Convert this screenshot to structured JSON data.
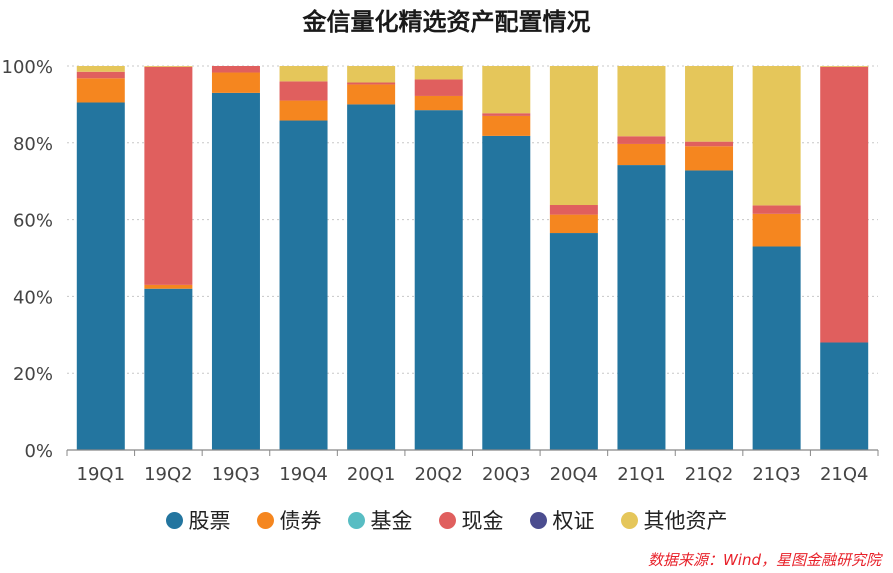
{
  "chart_data": {
    "type": "bar",
    "stacked": true,
    "title": "金信量化精选资产配置情况",
    "categories": [
      "19Q1",
      "19Q2",
      "19Q3",
      "19Q4",
      "20Q1",
      "20Q2",
      "20Q3",
      "20Q4",
      "21Q1",
      "21Q2",
      "21Q3",
      "21Q4"
    ],
    "y_tick_labels": [
      "0%",
      "20%",
      "40%",
      "60%",
      "80%",
      "100%"
    ],
    "ylim": [
      0,
      100
    ],
    "grid": true,
    "legend_position": "bottom",
    "series": [
      {
        "name": "股票",
        "color": "#23759f",
        "values": [
          90.5,
          42.0,
          93.0,
          85.8,
          90.0,
          88.5,
          81.8,
          56.5,
          74.2,
          72.8,
          53.0,
          28.0
        ]
      },
      {
        "name": "债券",
        "color": "#f5861f",
        "values": [
          6.3,
          1.0,
          5.3,
          5.2,
          5.2,
          3.7,
          5.2,
          4.8,
          5.5,
          6.3,
          8.5,
          0.0
        ]
      },
      {
        "name": "基金",
        "color": "#58bdc3",
        "values": [
          0,
          0,
          0,
          0,
          0,
          0,
          0,
          0,
          0,
          0,
          0,
          0
        ]
      },
      {
        "name": "现金",
        "color": "#e05f5e",
        "values": [
          1.7,
          56.8,
          1.7,
          5.0,
          0.5,
          4.3,
          0.7,
          2.5,
          2.0,
          1.2,
          2.2,
          71.8
        ]
      },
      {
        "name": "权证",
        "color": "#4b4d8f",
        "values": [
          0,
          0,
          0,
          0,
          0,
          0,
          0,
          0,
          0,
          0,
          0,
          0
        ]
      },
      {
        "name": "其他资产",
        "color": "#e5c65a",
        "values": [
          1.5,
          0.2,
          0.0,
          4.0,
          4.3,
          3.5,
          12.3,
          36.2,
          18.3,
          19.7,
          36.3,
          0.2
        ]
      }
    ],
    "source": "数据来源：Wind，星图金融研究院"
  }
}
